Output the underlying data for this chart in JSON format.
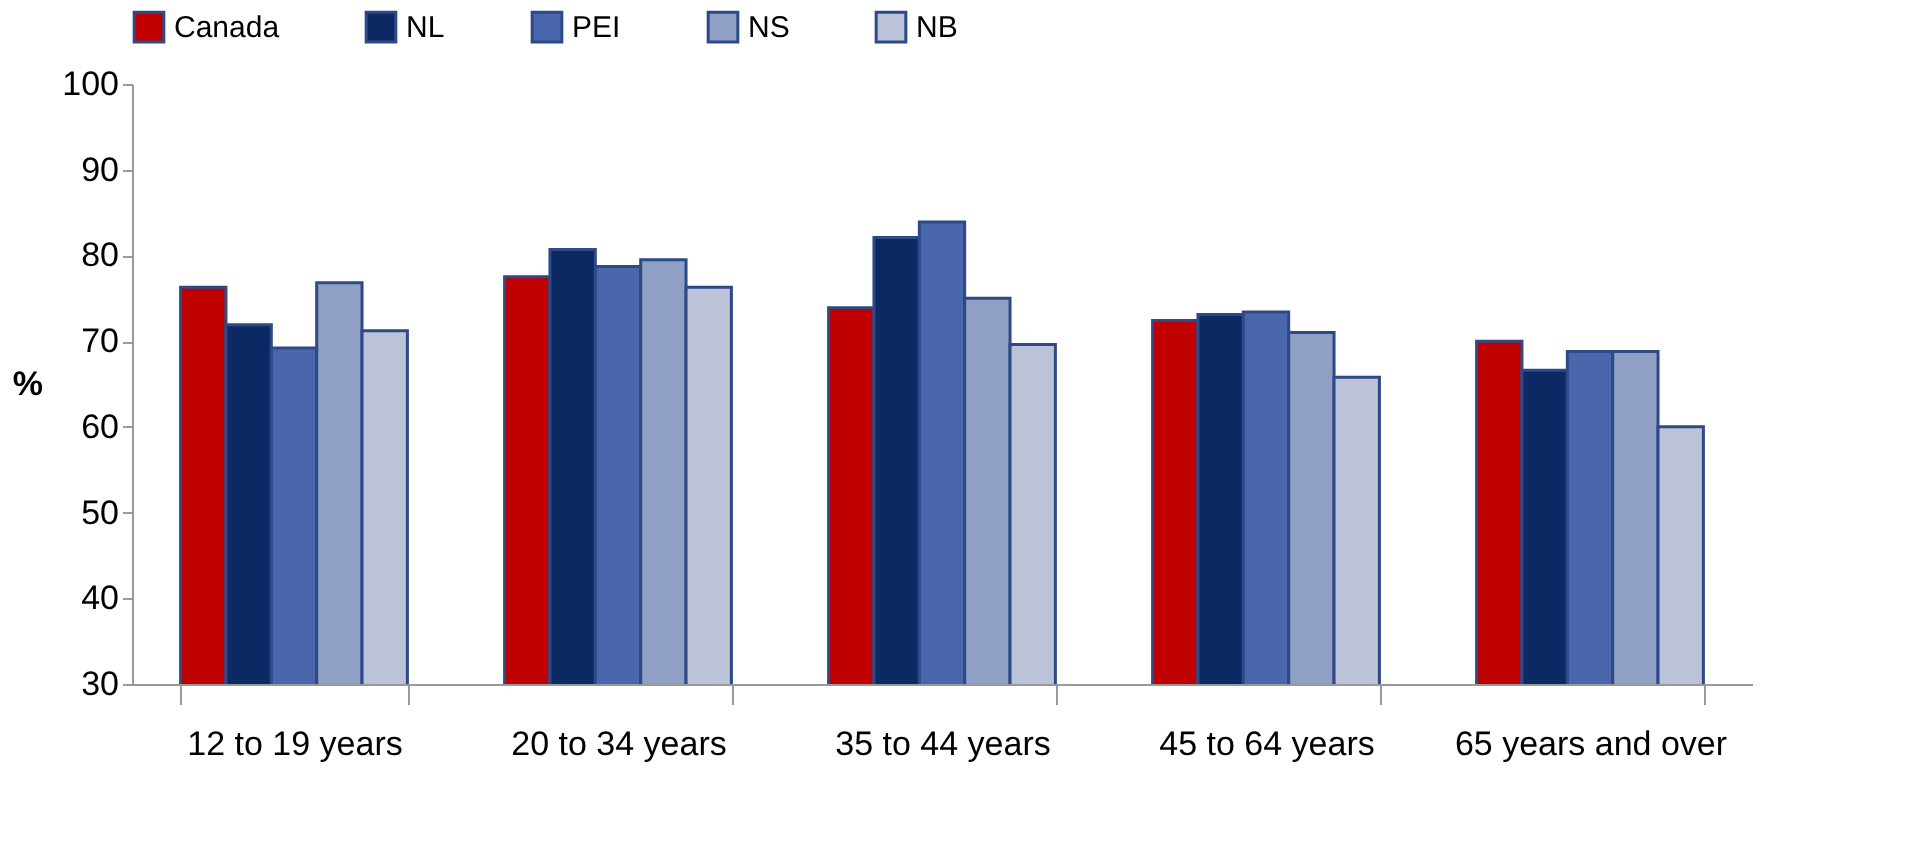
{
  "chart_data": {
    "type": "bar",
    "ylabel": "%",
    "categories": [
      "12 to 19 years",
      "20 to 34 years",
      "35 to 44 years",
      "45 to 64 years",
      "65 years and over"
    ],
    "series": [
      {
        "name": "Canada",
        "color": "#c00000",
        "values": [
          76.3,
          77.5,
          73.9,
          72.4,
          70.0
        ]
      },
      {
        "name": "NL",
        "color": "#0b2a63",
        "values": [
          71.9,
          80.7,
          82.1,
          73.1,
          66.6
        ]
      },
      {
        "name": "PEI",
        "color": "#4a67ad",
        "values": [
          69.2,
          78.7,
          83.9,
          73.4,
          68.8
        ]
      },
      {
        "name": "NS",
        "color": "#8f9fc5",
        "values": [
          76.8,
          79.5,
          75.0,
          71.0,
          68.8
        ]
      },
      {
        "name": "NB",
        "color": "#bcc3d9",
        "values": [
          71.2,
          76.3,
          69.6,
          65.8,
          60.0
        ]
      }
    ],
    "ylim": [
      30,
      100
    ],
    "yticks": [
      30,
      40,
      50,
      60,
      70,
      80,
      90,
      100
    ],
    "grid": false,
    "legend": "top"
  }
}
